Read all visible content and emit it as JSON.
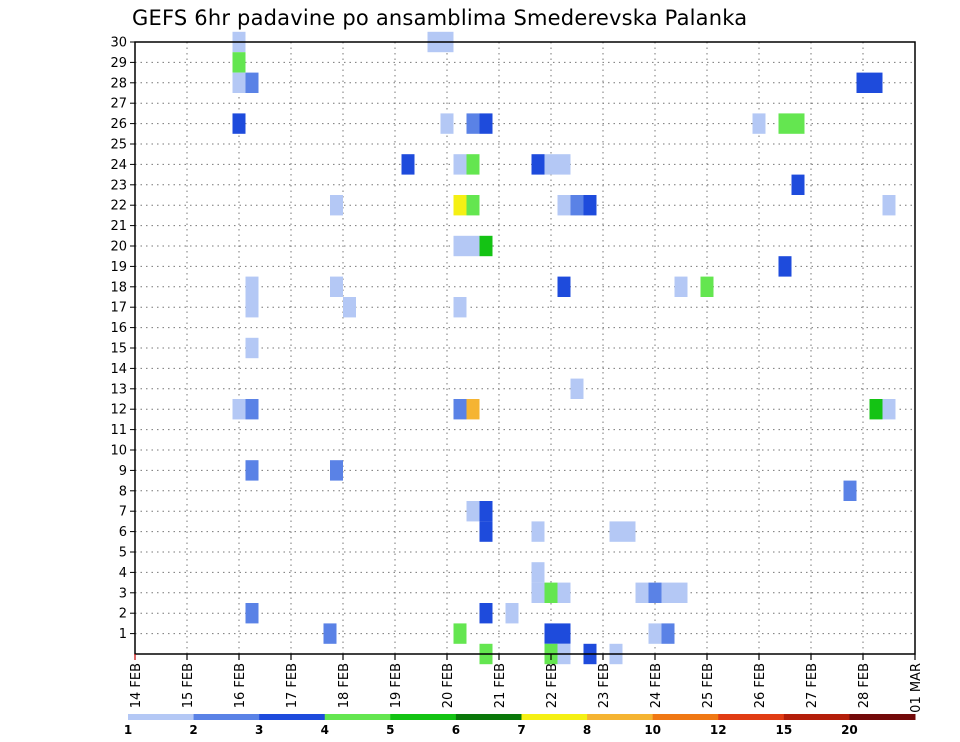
{
  "chart_data": {
    "type": "heatmap",
    "title": "GEFS 6hr padavine po ansamblima Smederevska Palanka",
    "xlabel": "",
    "ylabel": "",
    "x_ticks": [
      "14 FEB",
      "15 FEB",
      "16 FEB",
      "17 FEB",
      "18 FEB",
      "19 FEB",
      "20 FEB",
      "21 FEB",
      "22 FEB",
      "23 FEB",
      "24 FEB",
      "25 FEB",
      "26 FEB",
      "27 FEB",
      "28 FEB",
      "01 MAR"
    ],
    "xlim": [
      0,
      15
    ],
    "y_ticks": [
      1,
      2,
      3,
      4,
      5,
      6,
      7,
      8,
      9,
      10,
      11,
      12,
      13,
      14,
      15,
      16,
      17,
      18,
      19,
      20,
      21,
      22,
      23,
      24,
      25,
      26,
      27,
      28,
      29,
      30
    ],
    "ylim": [
      0,
      30
    ],
    "grid": true,
    "colorbar": {
      "placement": "bottom",
      "labels": [
        "1",
        "2",
        "3",
        "4",
        "5",
        "6",
        "7",
        "8",
        "10",
        "12",
        "15",
        "20"
      ],
      "colors": [
        "#b4c8f5",
        "#5a82e6",
        "#1e4bdc",
        "#64e650",
        "#14c314",
        "#0a780a",
        "#f5f014",
        "#f5b432",
        "#f07814",
        "#e13c14",
        "#b41e0a",
        "#730a0a"
      ]
    },
    "cells": [
      {
        "t": 2.0,
        "m": 30,
        "c": 0
      },
      {
        "t": 2.0,
        "m": 29,
        "c": 3
      },
      {
        "t": 2.0,
        "m": 28,
        "c": 0
      },
      {
        "t": 2.25,
        "m": 28,
        "c": 1
      },
      {
        "t": 2.0,
        "m": 26,
        "c": 2
      },
      {
        "t": 2.25,
        "m": 18,
        "c": 0
      },
      {
        "t": 2.25,
        "m": 17,
        "c": 0
      },
      {
        "t": 2.25,
        "m": 15,
        "c": 0
      },
      {
        "t": 2.0,
        "m": 12,
        "c": 0
      },
      {
        "t": 2.25,
        "m": 12,
        "c": 1
      },
      {
        "t": 2.25,
        "m": 9,
        "c": 1
      },
      {
        "t": 2.25,
        "m": 2,
        "c": 1
      },
      {
        "t": 3.75,
        "m": 1,
        "c": 1
      },
      {
        "t": 3.875,
        "m": 22,
        "c": 0
      },
      {
        "t": 3.875,
        "m": 18,
        "c": 0
      },
      {
        "t": 4.125,
        "m": 17,
        "c": 0
      },
      {
        "t": 3.875,
        "m": 9,
        "c": 1
      },
      {
        "t": 5.25,
        "m": 24,
        "c": 2
      },
      {
        "t": 5.75,
        "m": 30,
        "c": 0
      },
      {
        "t": 6.0,
        "m": 30,
        "c": 0
      },
      {
        "t": 6.0,
        "m": 26,
        "c": 0
      },
      {
        "t": 6.25,
        "m": 24,
        "c": 0
      },
      {
        "t": 6.5,
        "m": 24,
        "c": 3
      },
      {
        "t": 6.25,
        "m": 22,
        "c": 6
      },
      {
        "t": 6.5,
        "m": 22,
        "c": 3
      },
      {
        "t": 6.25,
        "m": 20,
        "c": 0
      },
      {
        "t": 6.5,
        "m": 20,
        "c": 0
      },
      {
        "t": 6.75,
        "m": 20,
        "c": 4
      },
      {
        "t": 6.25,
        "m": 17,
        "c": 0
      },
      {
        "t": 6.25,
        "m": 12,
        "c": 1
      },
      {
        "t": 6.5,
        "m": 12,
        "c": 7
      },
      {
        "t": 6.5,
        "m": 26,
        "c": 1
      },
      {
        "t": 6.75,
        "m": 26,
        "c": 2
      },
      {
        "t": 6.5,
        "m": 7,
        "c": 0
      },
      {
        "t": 6.75,
        "m": 7,
        "c": 2
      },
      {
        "t": 6.75,
        "m": 6,
        "c": 2
      },
      {
        "t": 6.75,
        "m": 2,
        "c": 2
      },
      {
        "t": 6.25,
        "m": 1,
        "c": 3
      },
      {
        "t": 6.75,
        "m": 0,
        "c": 3
      },
      {
        "t": 7.25,
        "m": 2,
        "c": 0
      },
      {
        "t": 7.75,
        "m": 24,
        "c": 2
      },
      {
        "t": 8.0,
        "m": 24,
        "c": 0
      },
      {
        "t": 8.25,
        "m": 24,
        "c": 0
      },
      {
        "t": 8.25,
        "m": 22,
        "c": 0
      },
      {
        "t": 8.5,
        "m": 22,
        "c": 1
      },
      {
        "t": 8.75,
        "m": 22,
        "c": 2
      },
      {
        "t": 8.25,
        "m": 18,
        "c": 2
      },
      {
        "t": 8.5,
        "m": 13,
        "c": 0
      },
      {
        "t": 7.75,
        "m": 6,
        "c": 0
      },
      {
        "t": 7.75,
        "m": 4,
        "c": 0
      },
      {
        "t": 7.75,
        "m": 3,
        "c": 0
      },
      {
        "t": 8.0,
        "m": 3,
        "c": 3
      },
      {
        "t": 8.25,
        "m": 3,
        "c": 0
      },
      {
        "t": 8.0,
        "m": 1,
        "c": 2
      },
      {
        "t": 8.25,
        "m": 1,
        "c": 2
      },
      {
        "t": 8.0,
        "m": 0,
        "c": 3
      },
      {
        "t": 8.25,
        "m": 0,
        "c": 0
      },
      {
        "t": 8.75,
        "m": 0,
        "c": 2
      },
      {
        "t": 9.25,
        "m": 6,
        "c": 0
      },
      {
        "t": 9.5,
        "m": 6,
        "c": 0
      },
      {
        "t": 9.25,
        "m": 0,
        "c": 0
      },
      {
        "t": 9.75,
        "m": 3,
        "c": 0
      },
      {
        "t": 10.0,
        "m": 3,
        "c": 1
      },
      {
        "t": 10.25,
        "m": 3,
        "c": 0
      },
      {
        "t": 10.5,
        "m": 3,
        "c": 0
      },
      {
        "t": 10.0,
        "m": 1,
        "c": 0
      },
      {
        "t": 10.25,
        "m": 1,
        "c": 1
      },
      {
        "t": 10.5,
        "m": 18,
        "c": 0
      },
      {
        "t": 11.0,
        "m": 18,
        "c": 3
      },
      {
        "t": 12.0,
        "m": 26,
        "c": 0
      },
      {
        "t": 12.5,
        "m": 26,
        "c": 3
      },
      {
        "t": 12.75,
        "m": 26,
        "c": 3
      },
      {
        "t": 12.5,
        "m": 19,
        "c": 2
      },
      {
        "t": 12.75,
        "m": 23,
        "c": 2
      },
      {
        "t": 13.75,
        "m": 8,
        "c": 1
      },
      {
        "t": 14.0,
        "m": 28,
        "c": 2
      },
      {
        "t": 14.25,
        "m": 28,
        "c": 2
      },
      {
        "t": 14.5,
        "m": 22,
        "c": 0
      },
      {
        "t": 14.25,
        "m": 12,
        "c": 4
      },
      {
        "t": 14.5,
        "m": 12,
        "c": 0
      }
    ]
  }
}
